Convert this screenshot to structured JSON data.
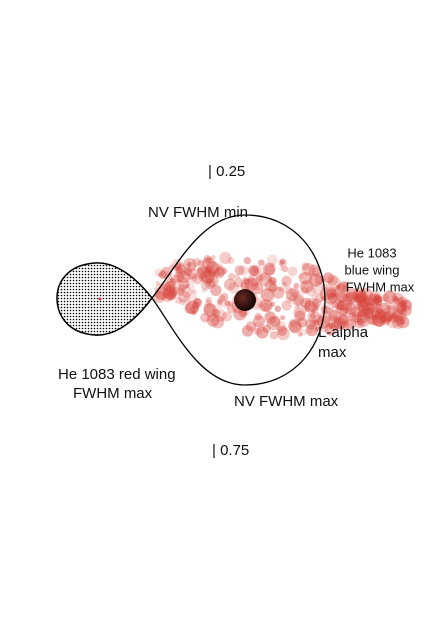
{
  "phase_top": "| 0.25",
  "phase_bottom": "| 0.75",
  "labels": {
    "nv_min": "NV FWHM min",
    "he_blue": [
      "He 1083",
      "blue wing",
      "FWHM max"
    ],
    "l_alpha": [
      "L-alpha",
      "max"
    ],
    "he_red": [
      "He 1083 red wing",
      "FWHM max"
    ],
    "nv_max": "NV FWHM max"
  }
}
